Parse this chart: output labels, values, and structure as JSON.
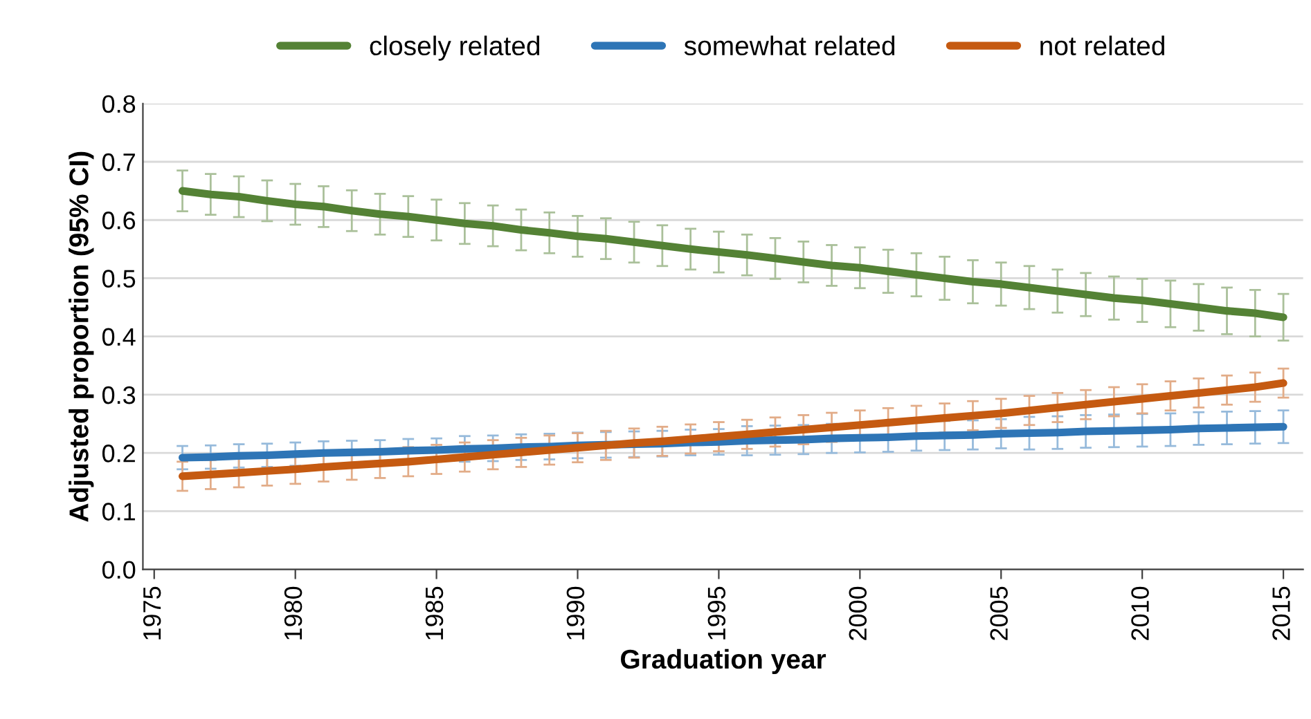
{
  "chart_data": {
    "type": "line",
    "xlabel": "Graduation year",
    "ylabel": "Adjusted proportion (95% CI)",
    "x": [
      1976,
      1977,
      1978,
      1979,
      1980,
      1981,
      1982,
      1983,
      1984,
      1985,
      1986,
      1987,
      1988,
      1989,
      1990,
      1991,
      1992,
      1993,
      1994,
      1995,
      1996,
      1997,
      1998,
      1999,
      2000,
      2001,
      2002,
      2003,
      2004,
      2005,
      2006,
      2007,
      2008,
      2009,
      2010,
      2011,
      2012,
      2013,
      2014,
      2015
    ],
    "xlim": [
      1974.6,
      2015.7
    ],
    "xticks": [
      1975,
      1980,
      1985,
      1990,
      1995,
      2000,
      2005,
      2010,
      2015
    ],
    "ylim": [
      0,
      0.8
    ],
    "yticks": [
      {
        "value": 0,
        "label": "0.0"
      },
      {
        "value": 0.1,
        "label": "0.1"
      },
      {
        "value": 0.2,
        "label": "0.2"
      },
      {
        "value": 0.3,
        "label": "0.3"
      },
      {
        "value": 0.4,
        "label": "0.4"
      },
      {
        "value": 0.5,
        "label": "0.5"
      },
      {
        "value": 0.6,
        "label": "0.6"
      },
      {
        "value": 0.7,
        "label": "0.7"
      },
      {
        "value": 0.8,
        "label": "0.8"
      }
    ],
    "grid": "y",
    "legend": "top",
    "marker": "none",
    "line_style": "solid",
    "series": [
      {
        "name": "closely related",
        "color": "#548235",
        "values": [
          0.65,
          0.644,
          0.64,
          0.633,
          0.627,
          0.623,
          0.616,
          0.61,
          0.606,
          0.6,
          0.594,
          0.59,
          0.583,
          0.578,
          0.572,
          0.568,
          0.562,
          0.556,
          0.55,
          0.545,
          0.54,
          0.534,
          0.528,
          0.522,
          0.518,
          0.512,
          0.506,
          0.5,
          0.494,
          0.49,
          0.484,
          0.478,
          0.472,
          0.466,
          0.462,
          0.456,
          0.45,
          0.444,
          0.44,
          0.433
        ],
        "errors": [
          0.035,
          0.035,
          0.035,
          0.035,
          0.035,
          0.035,
          0.035,
          0.035,
          0.035,
          0.035,
          0.035,
          0.035,
          0.035,
          0.035,
          0.035,
          0.035,
          0.035,
          0.035,
          0.035,
          0.035,
          0.035,
          0.035,
          0.035,
          0.035,
          0.035,
          0.037,
          0.037,
          0.037,
          0.037,
          0.037,
          0.037,
          0.037,
          0.037,
          0.037,
          0.037,
          0.04,
          0.04,
          0.04,
          0.04,
          0.04
        ]
      },
      {
        "name": "somewhat related",
        "color": "#2e75b6",
        "values": [
          0.192,
          0.193,
          0.195,
          0.196,
          0.198,
          0.2,
          0.201,
          0.202,
          0.204,
          0.205,
          0.207,
          0.208,
          0.21,
          0.211,
          0.213,
          0.214,
          0.215,
          0.216,
          0.218,
          0.219,
          0.221,
          0.222,
          0.223,
          0.225,
          0.226,
          0.227,
          0.229,
          0.23,
          0.231,
          0.233,
          0.234,
          0.235,
          0.237,
          0.238,
          0.239,
          0.24,
          0.242,
          0.243,
          0.244,
          0.245
        ],
        "errors": [
          0.02,
          0.02,
          0.02,
          0.02,
          0.02,
          0.02,
          0.02,
          0.02,
          0.02,
          0.02,
          0.022,
          0.022,
          0.022,
          0.022,
          0.022,
          0.022,
          0.022,
          0.022,
          0.022,
          0.022,
          0.025,
          0.025,
          0.025,
          0.025,
          0.025,
          0.025,
          0.025,
          0.025,
          0.025,
          0.025,
          0.028,
          0.028,
          0.028,
          0.028,
          0.028,
          0.028,
          0.028,
          0.028,
          0.028,
          0.028
        ]
      },
      {
        "name": "not related",
        "color": "#c55a11",
        "values": [
          0.16,
          0.163,
          0.166,
          0.169,
          0.172,
          0.176,
          0.179,
          0.182,
          0.185,
          0.189,
          0.193,
          0.197,
          0.201,
          0.205,
          0.209,
          0.213,
          0.217,
          0.22,
          0.224,
          0.228,
          0.232,
          0.236,
          0.24,
          0.244,
          0.248,
          0.252,
          0.256,
          0.26,
          0.264,
          0.268,
          0.273,
          0.278,
          0.283,
          0.288,
          0.293,
          0.298,
          0.303,
          0.308,
          0.313,
          0.32
        ],
        "errors": [
          0.025,
          0.025,
          0.025,
          0.025,
          0.025,
          0.025,
          0.025,
          0.025,
          0.025,
          0.025,
          0.025,
          0.025,
          0.025,
          0.025,
          0.025,
          0.025,
          0.025,
          0.025,
          0.025,
          0.025,
          0.025,
          0.025,
          0.025,
          0.025,
          0.025,
          0.025,
          0.025,
          0.025,
          0.025,
          0.025,
          0.025,
          0.025,
          0.025,
          0.025,
          0.025,
          0.025,
          0.025,
          0.025,
          0.025,
          0.025
        ]
      }
    ]
  }
}
